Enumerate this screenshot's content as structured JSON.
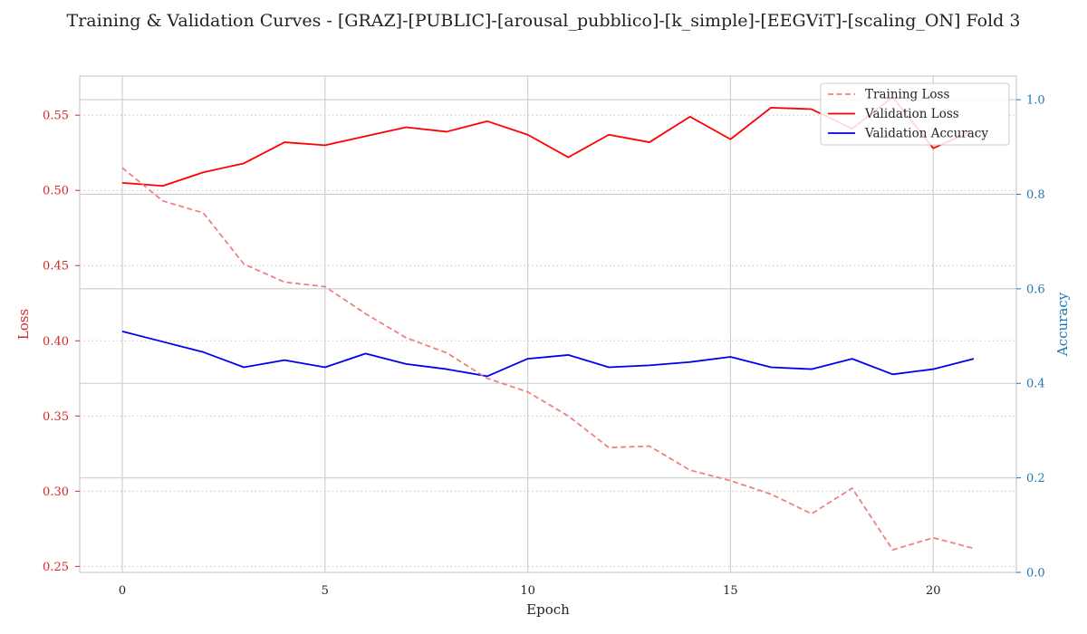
{
  "chart_data": {
    "type": "line",
    "title": "Training & Validation Curves - [GRAZ]-[PUBLIC]-[arousal_pubblico]-[k_simple]-[EEGViT]-[scaling_ON] Fold 3",
    "xlabel": "Epoch",
    "ylabel_left": "Loss",
    "ylabel_right": "Accuracy",
    "x": [
      0,
      1,
      2,
      3,
      4,
      5,
      6,
      7,
      8,
      9,
      10,
      11,
      12,
      13,
      14,
      15,
      16,
      17,
      18,
      19,
      20,
      21
    ],
    "xlim": [
      -1.05,
      22.05
    ],
    "ylim_left": [
      0.246,
      0.576
    ],
    "ylim_right": [
      0.0,
      1.05
    ],
    "xticks": [
      0,
      5,
      10,
      15,
      20
    ],
    "yticks_left": [
      0.25,
      0.3,
      0.35,
      0.4,
      0.45,
      0.5,
      0.55
    ],
    "yticks_right": [
      0.0,
      0.2,
      0.4,
      0.6,
      0.8,
      1.0
    ],
    "legend_position": "top-right",
    "grid": true,
    "colors": {
      "left_axis": "#d62728",
      "right_axis": "#1f77b4",
      "training_loss": "#f08080",
      "validation_loss": "#ff0000",
      "validation_accuracy": "#0000ee",
      "grid": "#cccccc"
    },
    "series": [
      {
        "name": "Training Loss",
        "axis": "left",
        "style": "dashed",
        "values": [
          0.515,
          0.493,
          0.485,
          0.451,
          0.439,
          0.436,
          0.418,
          0.402,
          0.392,
          0.375,
          0.366,
          0.35,
          0.329,
          0.33,
          0.314,
          0.307,
          0.298,
          0.285,
          0.302,
          0.261,
          0.269,
          0.262
        ]
      },
      {
        "name": "Validation Loss",
        "axis": "left",
        "style": "solid",
        "values": [
          0.505,
          0.503,
          0.512,
          0.518,
          0.532,
          0.53,
          0.536,
          0.542,
          0.539,
          0.546,
          0.537,
          0.522,
          0.537,
          0.532,
          0.549,
          0.534,
          0.555,
          0.554,
          0.541,
          0.562,
          0.528,
          0.54
        ]
      },
      {
        "name": "Validation Accuracy",
        "axis": "right",
        "style": "solid",
        "values": [
          0.51,
          0.488,
          0.466,
          0.434,
          0.449,
          0.434,
          0.463,
          0.441,
          0.43,
          0.415,
          0.452,
          0.46,
          0.434,
          0.438,
          0.445,
          0.456,
          0.434,
          0.43,
          0.452,
          0.419,
          0.43,
          0.452
        ]
      }
    ]
  }
}
